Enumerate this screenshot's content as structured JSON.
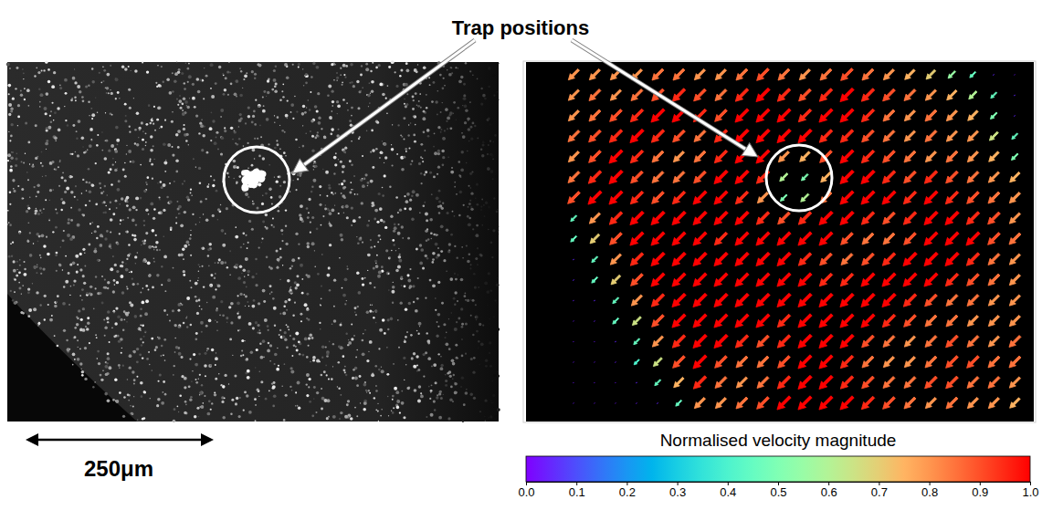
{
  "title": "Trap positions",
  "image_panel": {
    "scale_bar": "250μm"
  },
  "chart_data": {
    "type": "quiver",
    "tick_labels": false,
    "angle": -135,
    "magnitude": [
      [
        0.8,
        0.8,
        0.8,
        0.8,
        0.85,
        0.85,
        0.8,
        0.8,
        0.85,
        0.9,
        0.85,
        0.8,
        0.85,
        0.9,
        0.85,
        0.8,
        0.75,
        0.7,
        0.55,
        0.45,
        0.05,
        0.03
      ],
      [
        0.8,
        0.85,
        0.8,
        0.85,
        0.9,
        0.95,
        0.9,
        0.85,
        0.95,
        1.0,
        0.95,
        0.9,
        0.95,
        1.0,
        0.95,
        0.9,
        0.85,
        0.8,
        0.75,
        0.6,
        0.45,
        0.05
      ],
      [
        0.8,
        0.85,
        0.9,
        0.95,
        1.0,
        1.0,
        0.95,
        0.9,
        1.0,
        1.0,
        1.0,
        0.95,
        1.0,
        1.0,
        0.95,
        0.85,
        0.8,
        0.85,
        0.8,
        0.75,
        0.5,
        0.05
      ],
      [
        0.85,
        0.9,
        0.95,
        1.0,
        0.95,
        0.9,
        0.85,
        0.95,
        1.0,
        1.0,
        1.0,
        1.0,
        0.95,
        0.95,
        0.9,
        0.85,
        0.8,
        0.85,
        0.8,
        0.8,
        0.65,
        0.45
      ],
      [
        0.8,
        0.9,
        1.0,
        0.95,
        0.85,
        0.8,
        0.85,
        0.95,
        1.0,
        1.0,
        0.8,
        0.75,
        0.9,
        1.0,
        0.95,
        0.9,
        0.85,
        0.8,
        0.85,
        0.8,
        0.75,
        0.5
      ],
      [
        0.85,
        0.95,
        1.0,
        0.9,
        0.85,
        0.85,
        0.9,
        1.0,
        1.0,
        0.95,
        0.6,
        0.5,
        0.75,
        1.0,
        1.0,
        0.95,
        0.9,
        0.95,
        0.9,
        0.85,
        0.8,
        0.75
      ],
      [
        0.9,
        1.0,
        1.0,
        0.95,
        0.9,
        0.95,
        1.0,
        1.0,
        0.95,
        0.8,
        0.5,
        0.6,
        0.85,
        1.0,
        1.0,
        1.0,
        0.95,
        1.0,
        0.95,
        0.9,
        0.85,
        0.8
      ],
      [
        0.45,
        0.8,
        0.95,
        1.0,
        1.0,
        1.0,
        1.0,
        1.0,
        1.0,
        0.95,
        0.9,
        0.95,
        1.0,
        1.0,
        0.95,
        0.9,
        0.95,
        1.0,
        1.0,
        0.95,
        0.9,
        0.8
      ],
      [
        0.45,
        0.7,
        0.9,
        1.0,
        1.0,
        1.0,
        1.0,
        0.95,
        1.0,
        1.0,
        1.0,
        1.0,
        1.0,
        0.9,
        0.85,
        0.85,
        0.9,
        1.0,
        1.0,
        1.0,
        0.9,
        0.85
      ],
      [
        0.05,
        0.45,
        0.8,
        0.95,
        1.0,
        1.0,
        1.0,
        1.0,
        1.0,
        1.0,
        1.0,
        0.95,
        0.9,
        0.85,
        0.9,
        0.95,
        1.0,
        1.0,
        1.0,
        0.95,
        0.85,
        0.8
      ],
      [
        0.05,
        0.45,
        0.7,
        0.9,
        1.0,
        1.0,
        1.0,
        1.0,
        1.0,
        1.0,
        1.0,
        1.0,
        0.95,
        0.95,
        1.0,
        1.0,
        1.0,
        1.0,
        0.95,
        0.9,
        0.85,
        0.8
      ],
      [
        0.04,
        0.05,
        0.45,
        0.8,
        0.95,
        1.0,
        1.0,
        1.0,
        1.0,
        1.0,
        1.0,
        1.0,
        1.0,
        1.0,
        1.0,
        1.0,
        0.95,
        0.9,
        0.85,
        0.85,
        0.8,
        0.8
      ],
      [
        0.03,
        0.04,
        0.45,
        0.65,
        0.9,
        1.0,
        1.0,
        1.0,
        1.0,
        1.0,
        0.95,
        1.0,
        1.0,
        1.0,
        1.0,
        0.95,
        0.9,
        0.85,
        0.85,
        0.8,
        0.8,
        0.8
      ],
      [
        0.03,
        0.03,
        0.05,
        0.45,
        0.8,
        0.95,
        1.0,
        1.0,
        0.95,
        0.9,
        0.95,
        1.0,
        1.0,
        1.0,
        0.9,
        0.85,
        0.8,
        0.85,
        0.9,
        0.85,
        0.8,
        0.85
      ],
      [
        0.03,
        0.03,
        0.04,
        0.4,
        0.65,
        0.9,
        1.0,
        0.9,
        0.85,
        0.85,
        0.9,
        1.0,
        1.0,
        0.95,
        0.85,
        0.8,
        0.8,
        0.85,
        0.9,
        0.9,
        0.85,
        0.85
      ],
      [
        0.03,
        0.03,
        0.03,
        0.05,
        0.45,
        0.75,
        0.95,
        0.85,
        0.8,
        0.85,
        0.95,
        1.0,
        1.0,
        0.95,
        0.9,
        0.85,
        0.85,
        0.9,
        0.9,
        0.85,
        0.85,
        0.8
      ],
      [
        0.03,
        0.03,
        0.03,
        0.04,
        0.05,
        0.45,
        0.8,
        0.8,
        0.85,
        0.9,
        1.0,
        1.0,
        1.0,
        1.0,
        0.95,
        0.9,
        0.85,
        0.8,
        0.85,
        0.8,
        0.8,
        0.75
      ]
    ],
    "colorbar": {
      "label": "Normalised velocity magnitude",
      "range": [
        0,
        1
      ],
      "ticks": [
        {
          "value": 0,
          "label": "0.0"
        },
        0.1,
        0.2,
        0.3,
        0.4,
        0.5,
        0.6,
        0.7,
        0.8,
        0.9,
        {
          "value": 1,
          "label": "1.0"
        }
      ]
    }
  }
}
